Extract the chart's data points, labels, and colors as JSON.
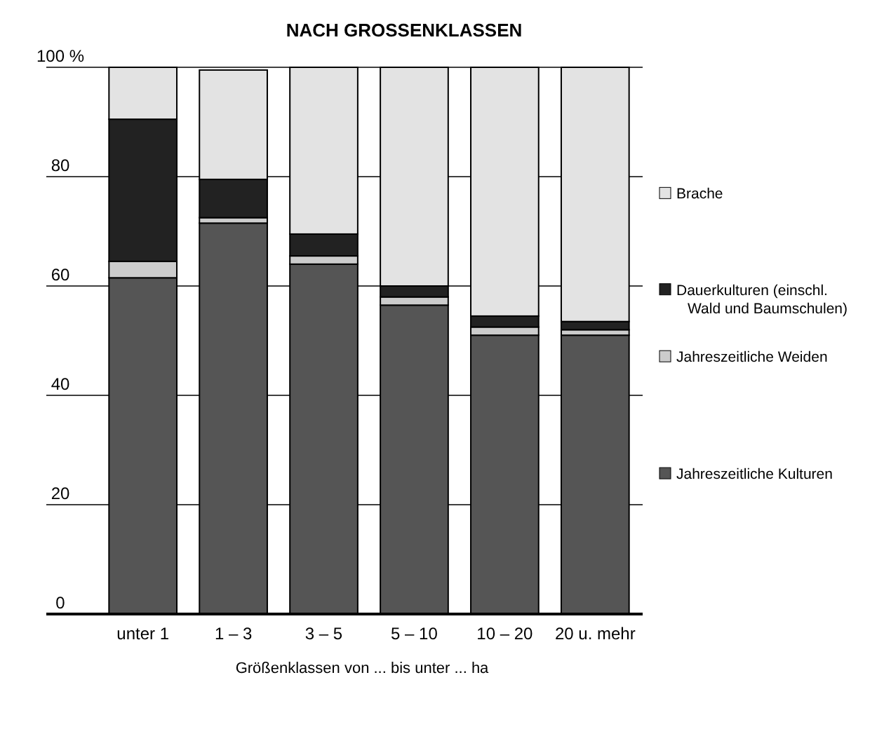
{
  "chart_data": {
    "type": "bar",
    "stacked": true,
    "title": "NACH GROSSENKLASSEN",
    "xlabel": "Größenklassen von ... bis unter ... ha",
    "categories": [
      "unter 1",
      "1 – 3",
      "3 – 5",
      "5 – 10",
      "10 – 20",
      "20 u. mehr"
    ],
    "series": [
      {
        "name": "Jahreszeitliche Kulturen",
        "color": "#555555",
        "values": [
          61.5,
          71.5,
          64,
          56.5,
          51,
          51
        ]
      },
      {
        "name": "Jahreszeitliche Weiden",
        "color": "#cccccc",
        "values": [
          3,
          1,
          1.5,
          1.5,
          1.5,
          1
        ]
      },
      {
        "name": "Dauerkulturen (einschl. Wald und Baumschulen)",
        "color": "#222222",
        "values": [
          26,
          7,
          4,
          2,
          2,
          1.5
        ]
      },
      {
        "name": "Brache",
        "color": "#e3e3e3",
        "values": [
          9.5,
          20,
          30.5,
          40,
          45.5,
          46.5
        ]
      }
    ],
    "ylim": [
      0,
      100
    ],
    "yticks": [
      0,
      20,
      40,
      60,
      80,
      {
        "value": 100,
        "label": "100 %"
      }
    ],
    "grid": "y",
    "legend": "right"
  }
}
